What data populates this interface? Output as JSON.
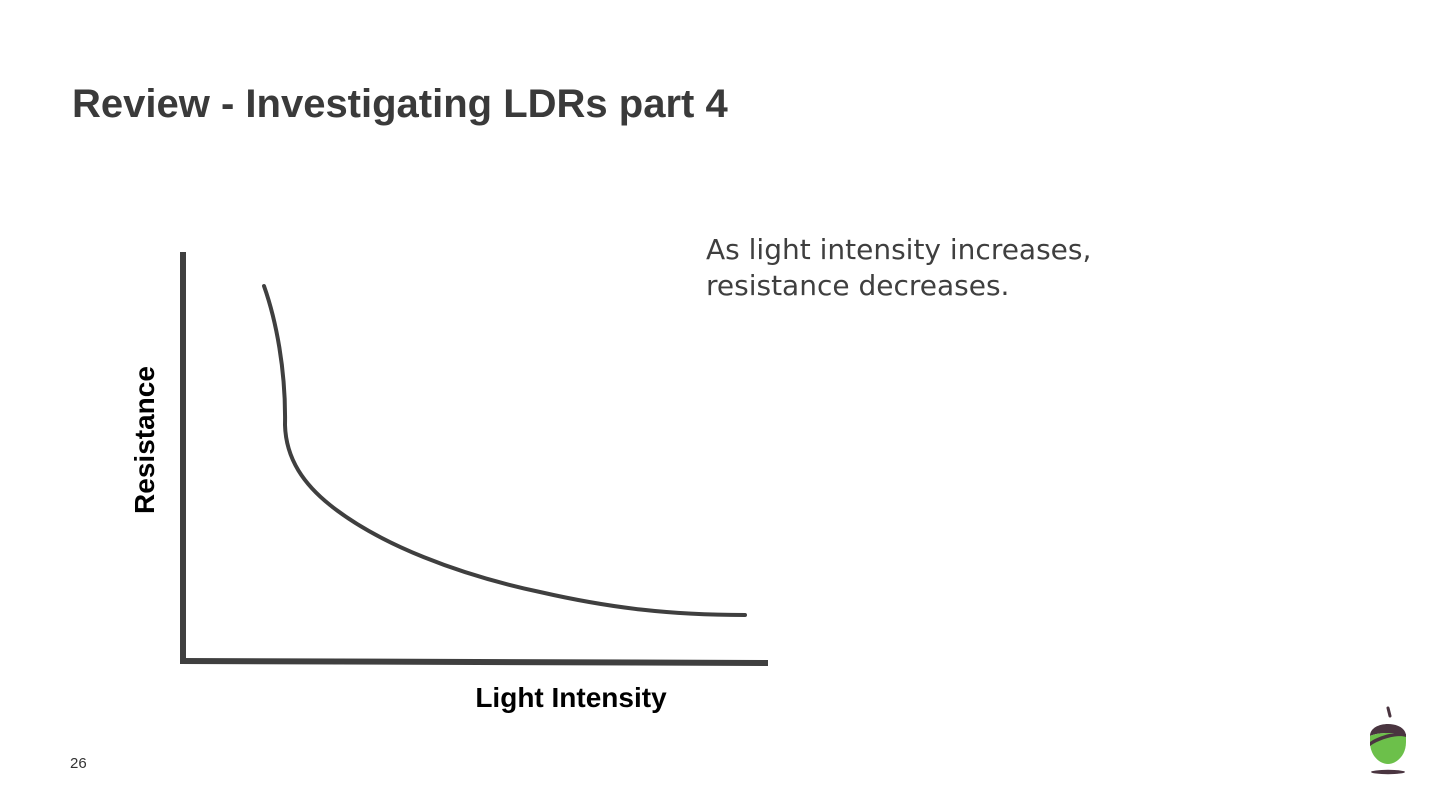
{
  "slide": {
    "title": "Review - Investigating LDRs part 4",
    "statement_lines": [
      "As light intensity increases,",
      "resistance decreases."
    ],
    "page_number": "26"
  },
  "graph": {
    "x_axis_label": "Light Intensity",
    "y_axis_label": "Resistance",
    "relationship": "resistance decreases as light intensity increases",
    "line_color": "#3f3f3f"
  },
  "logo": {
    "icon": "acorn-icon",
    "colors": {
      "cap": "#4a3540",
      "body": "#6cc04a"
    }
  }
}
